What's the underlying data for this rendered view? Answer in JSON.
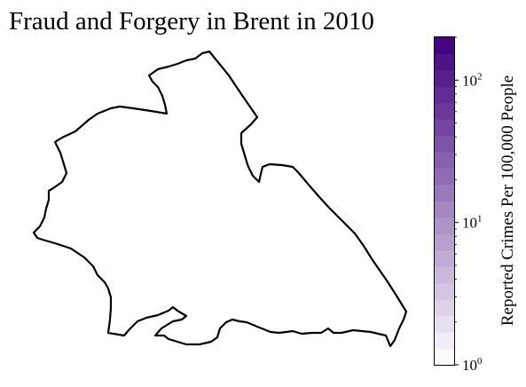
{
  "chart_data": {
    "type": "choropleth",
    "title": "Fraud and Forgery in Brent in 2010",
    "region": "Brent",
    "year": "2010",
    "colorbar": {
      "label": "Reported Crimes Per 100,000 People",
      "scale": "log",
      "range": [
        1,
        200
      ],
      "ticks": [
        {
          "value": 1,
          "base": "10",
          "exp": "0"
        },
        {
          "value": 10,
          "base": "10",
          "exp": "1"
        },
        {
          "value": 100,
          "base": "10",
          "exp": "2"
        }
      ],
      "levels": 20,
      "cmap_start": "#ffffff",
      "cmap_end": "#3f007d"
    },
    "fill_color": "#ffffff",
    "edge_color": "#000000"
  }
}
